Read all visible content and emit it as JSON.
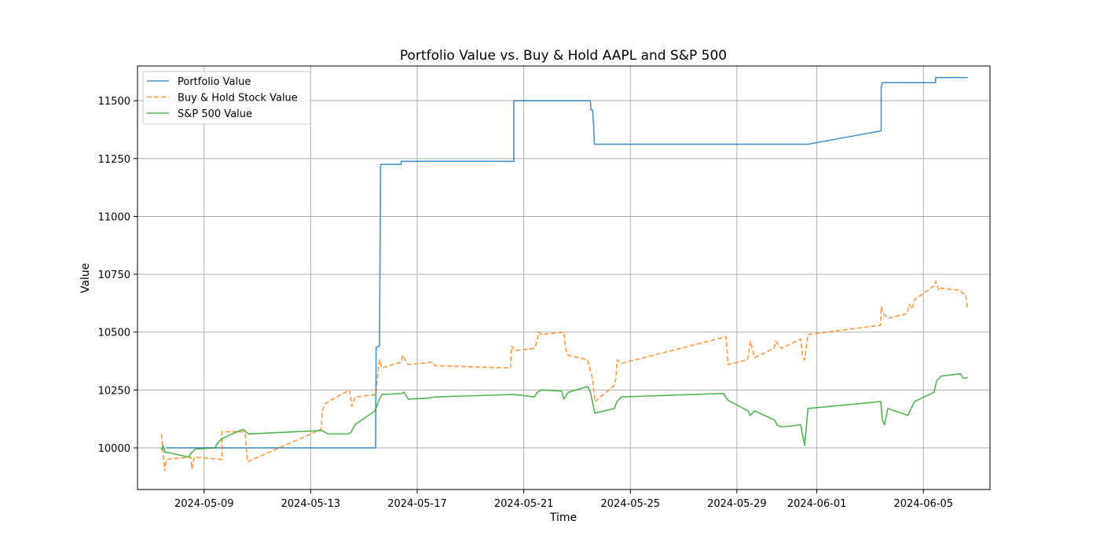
{
  "chart_data": {
    "type": "line",
    "title": "Portfolio Value vs. Buy & Hold AAPL and S&P 500",
    "xlabel": "Time",
    "ylabel": "Value",
    "xlim": [
      "2024-05-06T12:00",
      "2024-06-07T12:00"
    ],
    "ylim": [
      9820,
      11650
    ],
    "xticks": [
      "2024-05-09",
      "2024-05-13",
      "2024-05-17",
      "2024-05-21",
      "2024-05-25",
      "2024-05-29",
      "2024-06-01",
      "2024-06-05"
    ],
    "yticks": [
      10000,
      10250,
      10500,
      10750,
      11000,
      11250,
      11500
    ],
    "grid": true,
    "legend": "upper-left",
    "series": [
      {
        "name": "Portfolio Value",
        "color": "#1f77b4",
        "style": "solid",
        "points": [
          [
            "2024-05-07T14:00",
            10000
          ],
          [
            "2024-05-15T10:30",
            10000
          ],
          [
            "2024-05-15T11:00",
            10435
          ],
          [
            "2024-05-15T14:00",
            10440
          ],
          [
            "2024-05-15T15:00",
            11225
          ],
          [
            "2024-05-16T09:30",
            11225
          ],
          [
            "2024-05-16T09:30",
            11238
          ],
          [
            "2024-05-20T15:00",
            11238
          ],
          [
            "2024-05-20T15:00",
            11500
          ],
          [
            "2024-05-23T12:00",
            11500
          ],
          [
            "2024-05-23T12:30",
            11460
          ],
          [
            "2024-05-23T14:00",
            11460
          ],
          [
            "2024-05-23T15:00",
            11390
          ],
          [
            "2024-05-23T15:30",
            11312
          ],
          [
            "2024-05-31T16:00",
            11312
          ],
          [
            "2024-06-03T10:00",
            11370
          ],
          [
            "2024-06-03T10:00",
            11560
          ],
          [
            "2024-06-03T11:00",
            11578
          ],
          [
            "2024-06-05T11:00",
            11578
          ],
          [
            "2024-06-05T11:00",
            11600
          ],
          [
            "2024-06-06T16:00",
            11600
          ]
        ]
      },
      {
        "name": "Buy & Hold Stock Value",
        "color": "#ff7f0e",
        "style": "dashed",
        "points": [
          [
            "2024-05-07T09:30",
            10060
          ],
          [
            "2024-05-07T11:00",
            9980
          ],
          [
            "2024-05-07T12:30",
            9900
          ],
          [
            "2024-05-07T14:00",
            9950
          ],
          [
            "2024-05-08T12:00",
            9960
          ],
          [
            "2024-05-08T13:00",
            9910
          ],
          [
            "2024-05-08T15:00",
            9960
          ],
          [
            "2024-05-09T16:00",
            9950
          ],
          [
            "2024-05-09T16:00",
            10070
          ],
          [
            "2024-05-10T12:00",
            10070
          ],
          [
            "2024-05-10T13:00",
            10060
          ],
          [
            "2024-05-10T15:00",
            9940
          ],
          [
            "2024-05-13T09:30",
            10080
          ],
          [
            "2024-05-13T10:30",
            10160
          ],
          [
            "2024-05-13T13:00",
            10190
          ],
          [
            "2024-05-13T16:00",
            10200
          ],
          [
            "2024-05-14T11:00",
            10250
          ],
          [
            "2024-05-14T13:00",
            10180
          ],
          [
            "2024-05-14T16:00",
            10220
          ],
          [
            "2024-05-15T11:00",
            10230
          ],
          [
            "2024-05-15T12:00",
            10300
          ],
          [
            "2024-05-15T14:00",
            10380
          ],
          [
            "2024-05-15T16:00",
            10345
          ],
          [
            "2024-05-16T09:30",
            10370
          ],
          [
            "2024-05-16T11:00",
            10400
          ],
          [
            "2024-05-16T14:00",
            10370
          ],
          [
            "2024-05-16T16:00",
            10360
          ],
          [
            "2024-05-17T14:00",
            10370
          ],
          [
            "2024-05-17T16:00",
            10355
          ],
          [
            "2024-05-20T12:00",
            10345
          ],
          [
            "2024-05-20T13:00",
            10440
          ],
          [
            "2024-05-20T16:00",
            10420
          ],
          [
            "2024-05-21T09:30",
            10430
          ],
          [
            "2024-05-21T12:00",
            10460
          ],
          [
            "2024-05-21T13:00",
            10500
          ],
          [
            "2024-05-21T16:00",
            10490
          ],
          [
            "2024-05-22T12:00",
            10500
          ],
          [
            "2024-05-22T14:00",
            10420
          ],
          [
            "2024-05-22T16:00",
            10400
          ],
          [
            "2024-05-23T09:30",
            10380
          ],
          [
            "2024-05-23T11:00",
            10350
          ],
          [
            "2024-05-23T14:00",
            10300
          ],
          [
            "2024-05-23T16:00",
            10200
          ],
          [
            "2024-05-24T09:30",
            10270
          ],
          [
            "2024-05-24T11:00",
            10300
          ],
          [
            "2024-05-24T12:00",
            10380
          ],
          [
            "2024-05-24T16:00",
            10365
          ],
          [
            "2024-05-28T14:00",
            10480
          ],
          [
            "2024-05-28T15:00",
            10430
          ],
          [
            "2024-05-28T16:00",
            10360
          ],
          [
            "2024-05-29T09:30",
            10380
          ],
          [
            "2024-05-29T11:00",
            10420
          ],
          [
            "2024-05-29T12:00",
            10460
          ],
          [
            "2024-05-29T16:00",
            10390
          ],
          [
            "2024-05-30T09:30",
            10430
          ],
          [
            "2024-05-30T11:00",
            10460
          ],
          [
            "2024-05-30T16:00",
            10430
          ],
          [
            "2024-05-31T09:30",
            10470
          ],
          [
            "2024-05-31T11:00",
            10400
          ],
          [
            "2024-05-31T13:00",
            10380
          ],
          [
            "2024-05-31T16:00",
            10490
          ],
          [
            "2024-06-03T09:30",
            10530
          ],
          [
            "2024-06-03T10:00",
            10610
          ],
          [
            "2024-06-03T12:00",
            10580
          ],
          [
            "2024-06-03T16:00",
            10560
          ],
          [
            "2024-06-04T09:30",
            10580
          ],
          [
            "2024-06-04T11:00",
            10620
          ],
          [
            "2024-06-04T14:00",
            10600
          ],
          [
            "2024-06-04T16:00",
            10640
          ],
          [
            "2024-06-05T09:30",
            10700
          ],
          [
            "2024-06-05T11:00",
            10720
          ],
          [
            "2024-06-05T14:00",
            10680
          ],
          [
            "2024-06-05T16:00",
            10690
          ],
          [
            "2024-06-06T09:30",
            10680
          ],
          [
            "2024-06-06T11:00",
            10670
          ],
          [
            "2024-06-06T14:00",
            10660
          ],
          [
            "2024-06-06T16:00",
            10600
          ]
        ]
      },
      {
        "name": "S&P 500 Value",
        "color": "#2ca02c",
        "style": "solid",
        "points": [
          [
            "2024-05-07T09:30",
            9990
          ],
          [
            "2024-05-07T11:00",
            10010
          ],
          [
            "2024-05-07T13:00",
            9980
          ],
          [
            "2024-05-07T16:00",
            9980
          ],
          [
            "2024-05-08T10:00",
            9960
          ],
          [
            "2024-05-08T12:00",
            9975
          ],
          [
            "2024-05-08T16:00",
            9995
          ],
          [
            "2024-05-09T10:00",
            10000
          ],
          [
            "2024-05-09T12:00",
            10020
          ],
          [
            "2024-05-09T16:00",
            10040
          ],
          [
            "2024-05-10T11:00",
            10080
          ],
          [
            "2024-05-10T16:00",
            10060
          ],
          [
            "2024-05-13T10:00",
            10075
          ],
          [
            "2024-05-13T12:00",
            10070
          ],
          [
            "2024-05-13T16:00",
            10060
          ],
          [
            "2024-05-14T09:30",
            10060
          ],
          [
            "2024-05-14T12:00",
            10065
          ],
          [
            "2024-05-14T16:00",
            10100
          ],
          [
            "2024-05-15T10:00",
            10160
          ],
          [
            "2024-05-15T13:00",
            10200
          ],
          [
            "2024-05-15T16:00",
            10230
          ],
          [
            "2024-05-16T09:30",
            10235
          ],
          [
            "2024-05-16T12:00",
            10240
          ],
          [
            "2024-05-16T16:00",
            10210
          ],
          [
            "2024-05-17T10:00",
            10215
          ],
          [
            "2024-05-17T16:00",
            10220
          ],
          [
            "2024-05-20T12:00",
            10230
          ],
          [
            "2024-05-20T16:00",
            10230
          ],
          [
            "2024-05-21T09:30",
            10220
          ],
          [
            "2024-05-21T12:00",
            10240
          ],
          [
            "2024-05-21T16:00",
            10250
          ],
          [
            "2024-05-22T10:00",
            10245
          ],
          [
            "2024-05-22T12:00",
            10210
          ],
          [
            "2024-05-22T16:00",
            10240
          ],
          [
            "2024-05-23T09:30",
            10265
          ],
          [
            "2024-05-23T12:00",
            10240
          ],
          [
            "2024-05-23T16:00",
            10150
          ],
          [
            "2024-05-24T09:30",
            10170
          ],
          [
            "2024-05-24T12:00",
            10200
          ],
          [
            "2024-05-24T16:00",
            10220
          ],
          [
            "2024-05-28T12:00",
            10235
          ],
          [
            "2024-05-28T16:00",
            10205
          ],
          [
            "2024-05-29T10:00",
            10160
          ],
          [
            "2024-05-29T12:00",
            10140
          ],
          [
            "2024-05-29T16:00",
            10160
          ],
          [
            "2024-05-30T10:00",
            10120
          ],
          [
            "2024-05-30T12:00",
            10100
          ],
          [
            "2024-05-30T16:00",
            10090
          ],
          [
            "2024-05-31T09:30",
            10100
          ],
          [
            "2024-05-31T11:00",
            10060
          ],
          [
            "2024-05-31T13:00",
            10010
          ],
          [
            "2024-05-31T16:00",
            10170
          ],
          [
            "2024-06-03T09:30",
            10200
          ],
          [
            "2024-06-03T11:00",
            10120
          ],
          [
            "2024-06-03T13:00",
            10100
          ],
          [
            "2024-06-03T16:00",
            10170
          ],
          [
            "2024-06-04T10:00",
            10140
          ],
          [
            "2024-06-04T12:00",
            10160
          ],
          [
            "2024-06-04T16:00",
            10200
          ],
          [
            "2024-06-05T09:30",
            10240
          ],
          [
            "2024-06-05T12:00",
            10290
          ],
          [
            "2024-06-05T16:00",
            10310
          ],
          [
            "2024-06-06T09:30",
            10320
          ],
          [
            "2024-06-06T12:00",
            10300
          ],
          [
            "2024-06-06T16:00",
            10305
          ]
        ]
      }
    ]
  }
}
